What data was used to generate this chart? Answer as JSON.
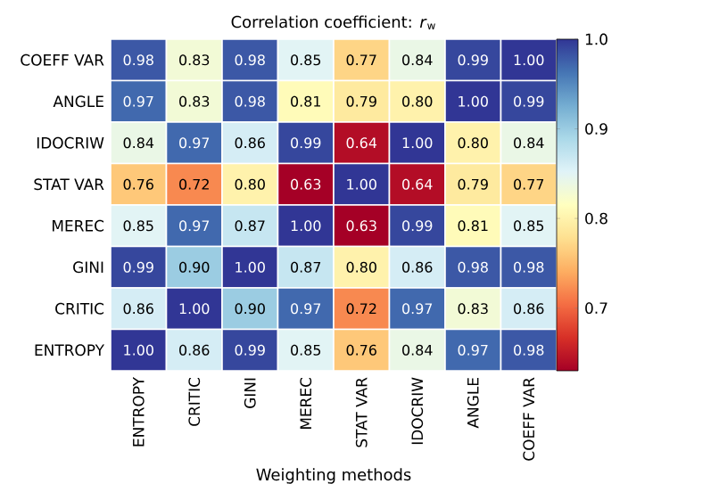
{
  "chart_data": {
    "type": "heatmap",
    "title": "Correlation coefficient: *r*$_{w}$",
    "xlabel": "Weighting methods",
    "categories": [
      "ENTROPY",
      "CRITIC",
      "GINI",
      "MEREC",
      "STAT VAR",
      "IDOCRIW",
      "ANGLE",
      "COEFF VAR"
    ],
    "y_categories": [
      "COEFF VAR",
      "ANGLE",
      "IDOCRIW",
      "STAT VAR",
      "MEREC",
      "GINI",
      "CRITIC",
      "ENTROPY"
    ],
    "cells": [
      [
        0.98,
        0.83,
        0.98,
        0.85,
        0.77,
        0.84,
        0.99,
        1.0
      ],
      [
        0.97,
        0.83,
        0.98,
        0.81,
        0.79,
        0.8,
        1.0,
        0.99
      ],
      [
        0.84,
        0.97,
        0.86,
        0.99,
        0.64,
        1.0,
        0.8,
        0.84
      ],
      [
        0.76,
        0.72,
        0.8,
        0.63,
        1.0,
        0.64,
        0.79,
        0.77
      ],
      [
        0.85,
        0.97,
        0.87,
        1.0,
        0.63,
        0.99,
        0.81,
        0.85
      ],
      [
        0.99,
        0.9,
        1.0,
        0.87,
        0.8,
        0.86,
        0.98,
        0.98
      ],
      [
        0.86,
        1.0,
        0.9,
        0.97,
        0.72,
        0.97,
        0.83,
        0.86
      ],
      [
        1.0,
        0.86,
        0.99,
        0.85,
        0.76,
        0.84,
        0.97,
        0.98
      ]
    ],
    "cell_labels": [
      [
        "0.98",
        "0.83",
        "0.98",
        "0.85",
        "0.77",
        "0.84",
        "0.99",
        "1.00"
      ],
      [
        "0.97",
        "0.83",
        "0.98",
        "0.81",
        "0.79",
        "0.80",
        "1.00",
        "0.99"
      ],
      [
        "0.84",
        "0.97",
        "0.86",
        "0.99",
        "0.64",
        "1.00",
        "0.80",
        "0.84"
      ],
      [
        "0.76",
        "0.72",
        "0.80",
        "0.63",
        "1.00",
        "0.64",
        "0.79",
        "0.77"
      ],
      [
        "0.85",
        "0.97",
        "0.87",
        "1.00",
        "0.63",
        "0.99",
        "0.81",
        "0.85"
      ],
      [
        "0.99",
        "0.90",
        "1.00",
        "0.87",
        "0.80",
        "0.86",
        "0.98",
        "0.98"
      ],
      [
        "0.86",
        "1.00",
        "0.90",
        "0.97",
        "0.72",
        "0.97",
        "0.83",
        "0.86"
      ],
      [
        "1.00",
        "0.86",
        "0.99",
        "0.85",
        "0.76",
        "0.84",
        "0.97",
        "0.98"
      ]
    ],
    "clim": [
      0.63,
      1.0
    ],
    "cticks": [
      0.7,
      0.8,
      0.9,
      {
        "value": 1.0,
        "label": "1.0"
      }
    ]
  }
}
